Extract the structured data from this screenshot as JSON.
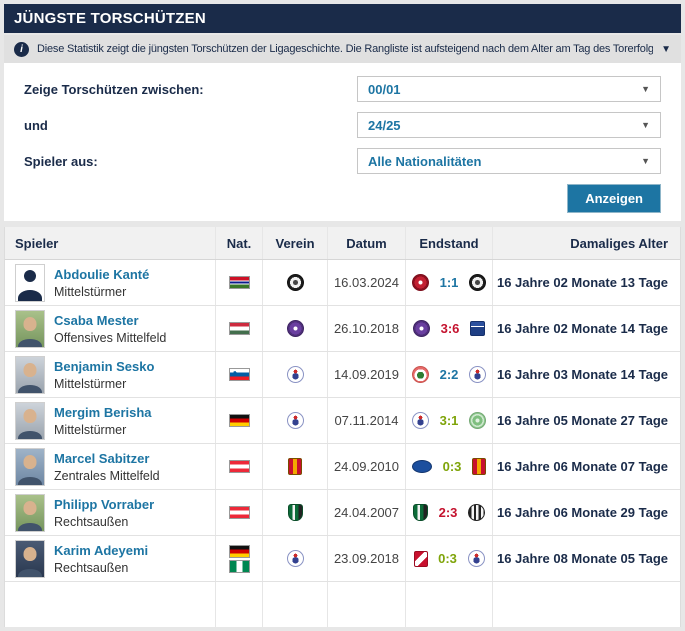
{
  "title": "JÜNGSTE TORSCHÜTZEN",
  "info_bar": {
    "text": "Diese Statistik zeigt die jüngsten Torschützen der Ligageschichte. Die Rangliste ist aufsteigend nach dem Alter am Tag des Torerfolgs geordne…",
    "collapse_icon": "▼"
  },
  "colors": {
    "navy": "#1a2b49",
    "link_blue": "#1d75a3",
    "win_green": "#7fa40a",
    "loss_red": "#c4122e",
    "draw_blue": "#1d75a3"
  },
  "filters": {
    "season_from": {
      "label": "Zeige Torschützen zwischen:",
      "value": "00/01"
    },
    "season_to": {
      "label": "und",
      "value": "24/25"
    },
    "nationality": {
      "label": "Spieler aus:",
      "value": "Alle Nationalitäten"
    },
    "submit_label": "Anzeigen"
  },
  "table": {
    "columns": [
      "Spieler",
      "Nat.",
      "Verein",
      "Datum",
      "Endstand",
      "Damaliges Alter"
    ],
    "rows": [
      {
        "player": "Abdoulie Kanté",
        "position": "Mittelstürmer",
        "avatar": "silhouette",
        "flags": [
          "gambia"
        ],
        "club": "black-circle",
        "date": "16.03.2024",
        "result": {
          "home": "red-circle",
          "score": "1:1",
          "away": "black-circle",
          "outcome": "draw"
        },
        "age": "16 Jahre 02 Monate 13 Tage"
      },
      {
        "player": "Csaba Mester",
        "position": "Offensives Mittelfeld",
        "avatar": "photo-grass",
        "flags": [
          "hungary"
        ],
        "club": "purple-circle",
        "date": "26.10.2018",
        "result": {
          "home": "purple-circle",
          "score": "3:6",
          "away": "blue-square",
          "outcome": "loss"
        },
        "age": "16 Jahre 02 Monate 14 Tage"
      },
      {
        "player": "Benjamin Sesko",
        "position": "Mittelstürmer",
        "avatar": "photo-grey",
        "flags": [
          "slovenia"
        ],
        "club": "liefering",
        "date": "14.09.2019",
        "result": {
          "home": "tree-circle",
          "score": "2:2",
          "away": "liefering",
          "outcome": "draw"
        },
        "age": "16 Jahre 03 Monate 14 Tage"
      },
      {
        "player": "Mergim Berisha",
        "position": "Mittelstürmer",
        "avatar": "photo-grey",
        "flags": [
          "germany"
        ],
        "club": "liefering",
        "date": "07.11.2014",
        "result": {
          "home": "liefering",
          "score": "3:1",
          "away": "green-ornate",
          "outcome": "win"
        },
        "age": "16 Jahre 05 Monate 27 Tage"
      },
      {
        "player": "Marcel Sabitzer",
        "position": "Zentrales Mittelfeld",
        "avatar": "photo-blue",
        "flags": [
          "austria"
        ],
        "club": "admira",
        "date": "24.09.2010",
        "result": {
          "home": "blue-oval",
          "score": "0:3",
          "away": "admira",
          "outcome": "win"
        },
        "age": "16 Jahre 06 Monate 07 Tage"
      },
      {
        "player": "Philipp Vorraber",
        "position": "Rechtsaußen",
        "avatar": "photo-grass",
        "flags": [
          "austria"
        ],
        "club": "green-shield",
        "date": "24.04.2007",
        "result": {
          "home": "green-shield",
          "score": "2:3",
          "away": "bw-striped",
          "outcome": "loss"
        },
        "age": "16 Jahre 06 Monate 29 Tage"
      },
      {
        "player": "Karim Adeyemi",
        "position": "Rechtsaußen",
        "avatar": "photo-dark",
        "flags": [
          "germany",
          "nigeria"
        ],
        "club": "liefering",
        "date": "23.09.2018",
        "result": {
          "home": "red-white-square",
          "score": "0:3",
          "away": "liefering",
          "outcome": "win"
        },
        "age": "16 Jahre 08 Monate 05 Tage"
      }
    ]
  }
}
